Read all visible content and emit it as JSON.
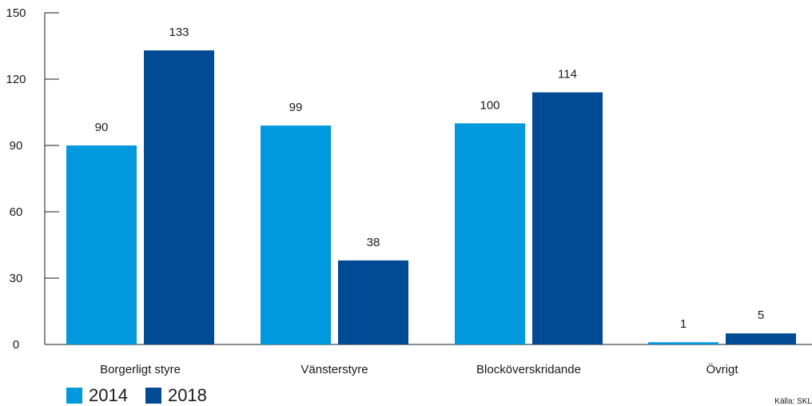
{
  "chart_data": {
    "type": "bar",
    "categories": [
      "Borgerligt styre",
      "Vänsterstyre",
      "Blocköverskridande",
      "Övrigt"
    ],
    "series": [
      {
        "name": "2014",
        "color": "#0099dd",
        "values": [
          90,
          99,
          100,
          1
        ]
      },
      {
        "name": "2018",
        "color": "#004b93",
        "values": [
          133,
          38,
          114,
          5
        ]
      }
    ],
    "ylim": [
      0,
      150
    ],
    "yticks": [
      0,
      30,
      60,
      90,
      120,
      150
    ],
    "grid": false,
    "legend_position": "bottom-left",
    "source": "Källa: SKL"
  }
}
